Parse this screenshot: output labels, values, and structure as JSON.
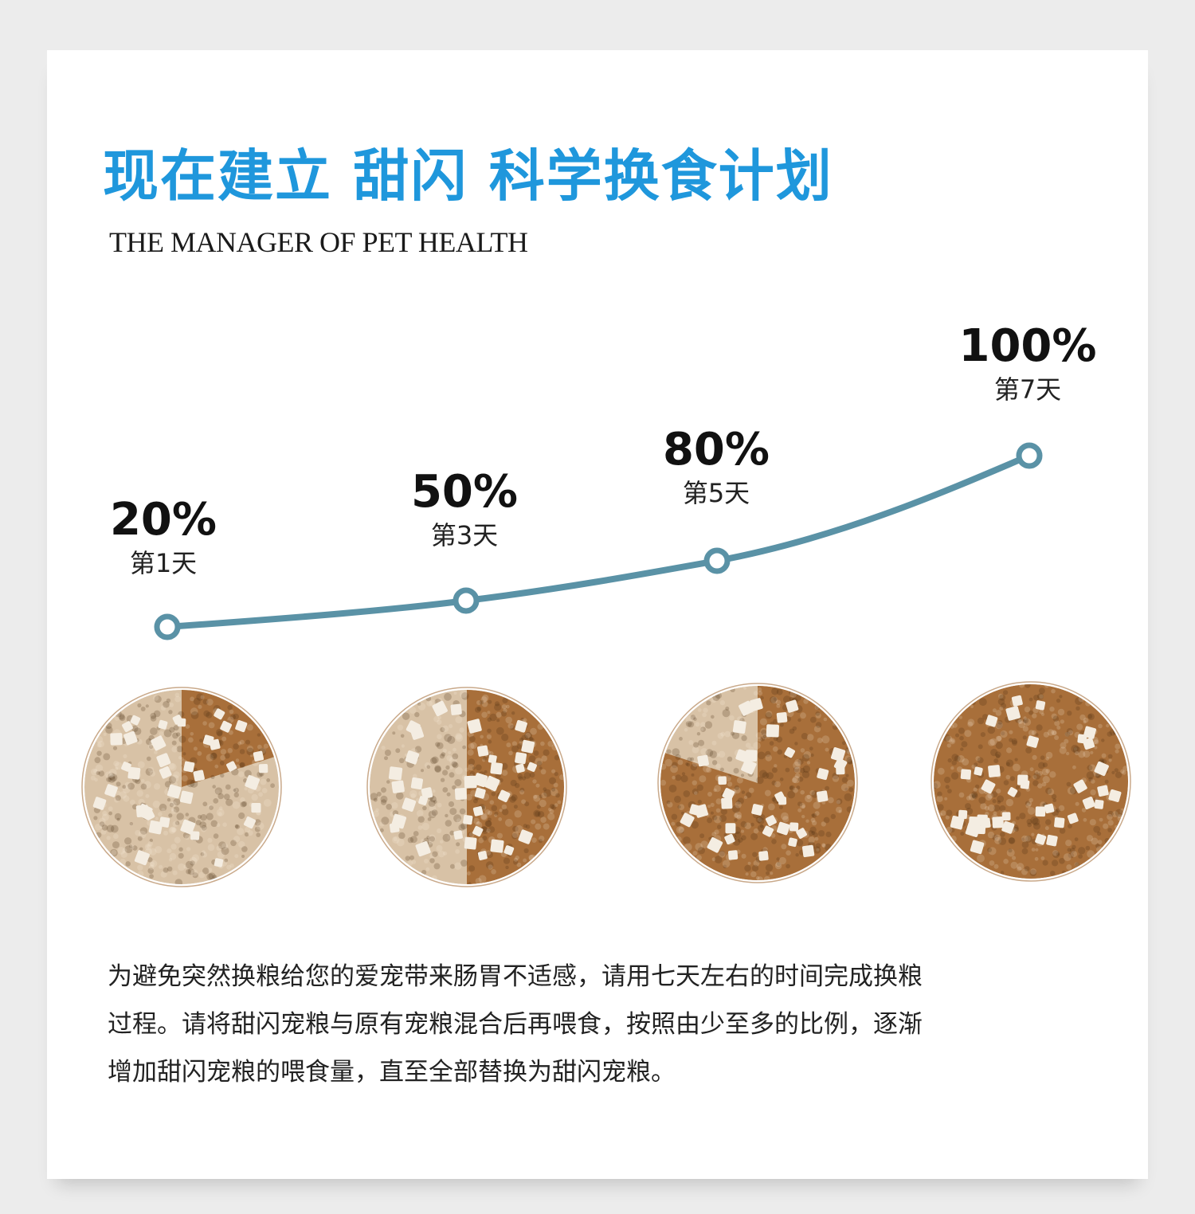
{
  "title": "现在建立 甜闪 科学换食计划",
  "subtitle": "THE MANAGER OF PET HEALTH",
  "stages": [
    {
      "percent": "20%",
      "day": "第1天",
      "new_food_fraction": 0.2
    },
    {
      "percent": "50%",
      "day": "第3天",
      "new_food_fraction": 0.5
    },
    {
      "percent": "80%",
      "day": "第5天",
      "new_food_fraction": 0.8
    },
    {
      "percent": "100%",
      "day": "第7天",
      "new_food_fraction": 1.0
    }
  ],
  "colors": {
    "title": "#1f97dc",
    "curve": "#5a92a6",
    "new_food": "#a86f3a",
    "old_food": "#d8c2a6",
    "cube": "#f4ede2"
  },
  "description": {
    "line1": "为避免突然换粮给您的爱宠带来肠胃不适感，请用七天左右的时间完成换粮",
    "line2": "过程。请将甜闪宠粮与原有宠粮混合后再喂食，按照由少至多的比例，逐渐",
    "line3": "增加甜闪宠粮的喂食量，直至全部替换为甜闪宠粮。"
  }
}
